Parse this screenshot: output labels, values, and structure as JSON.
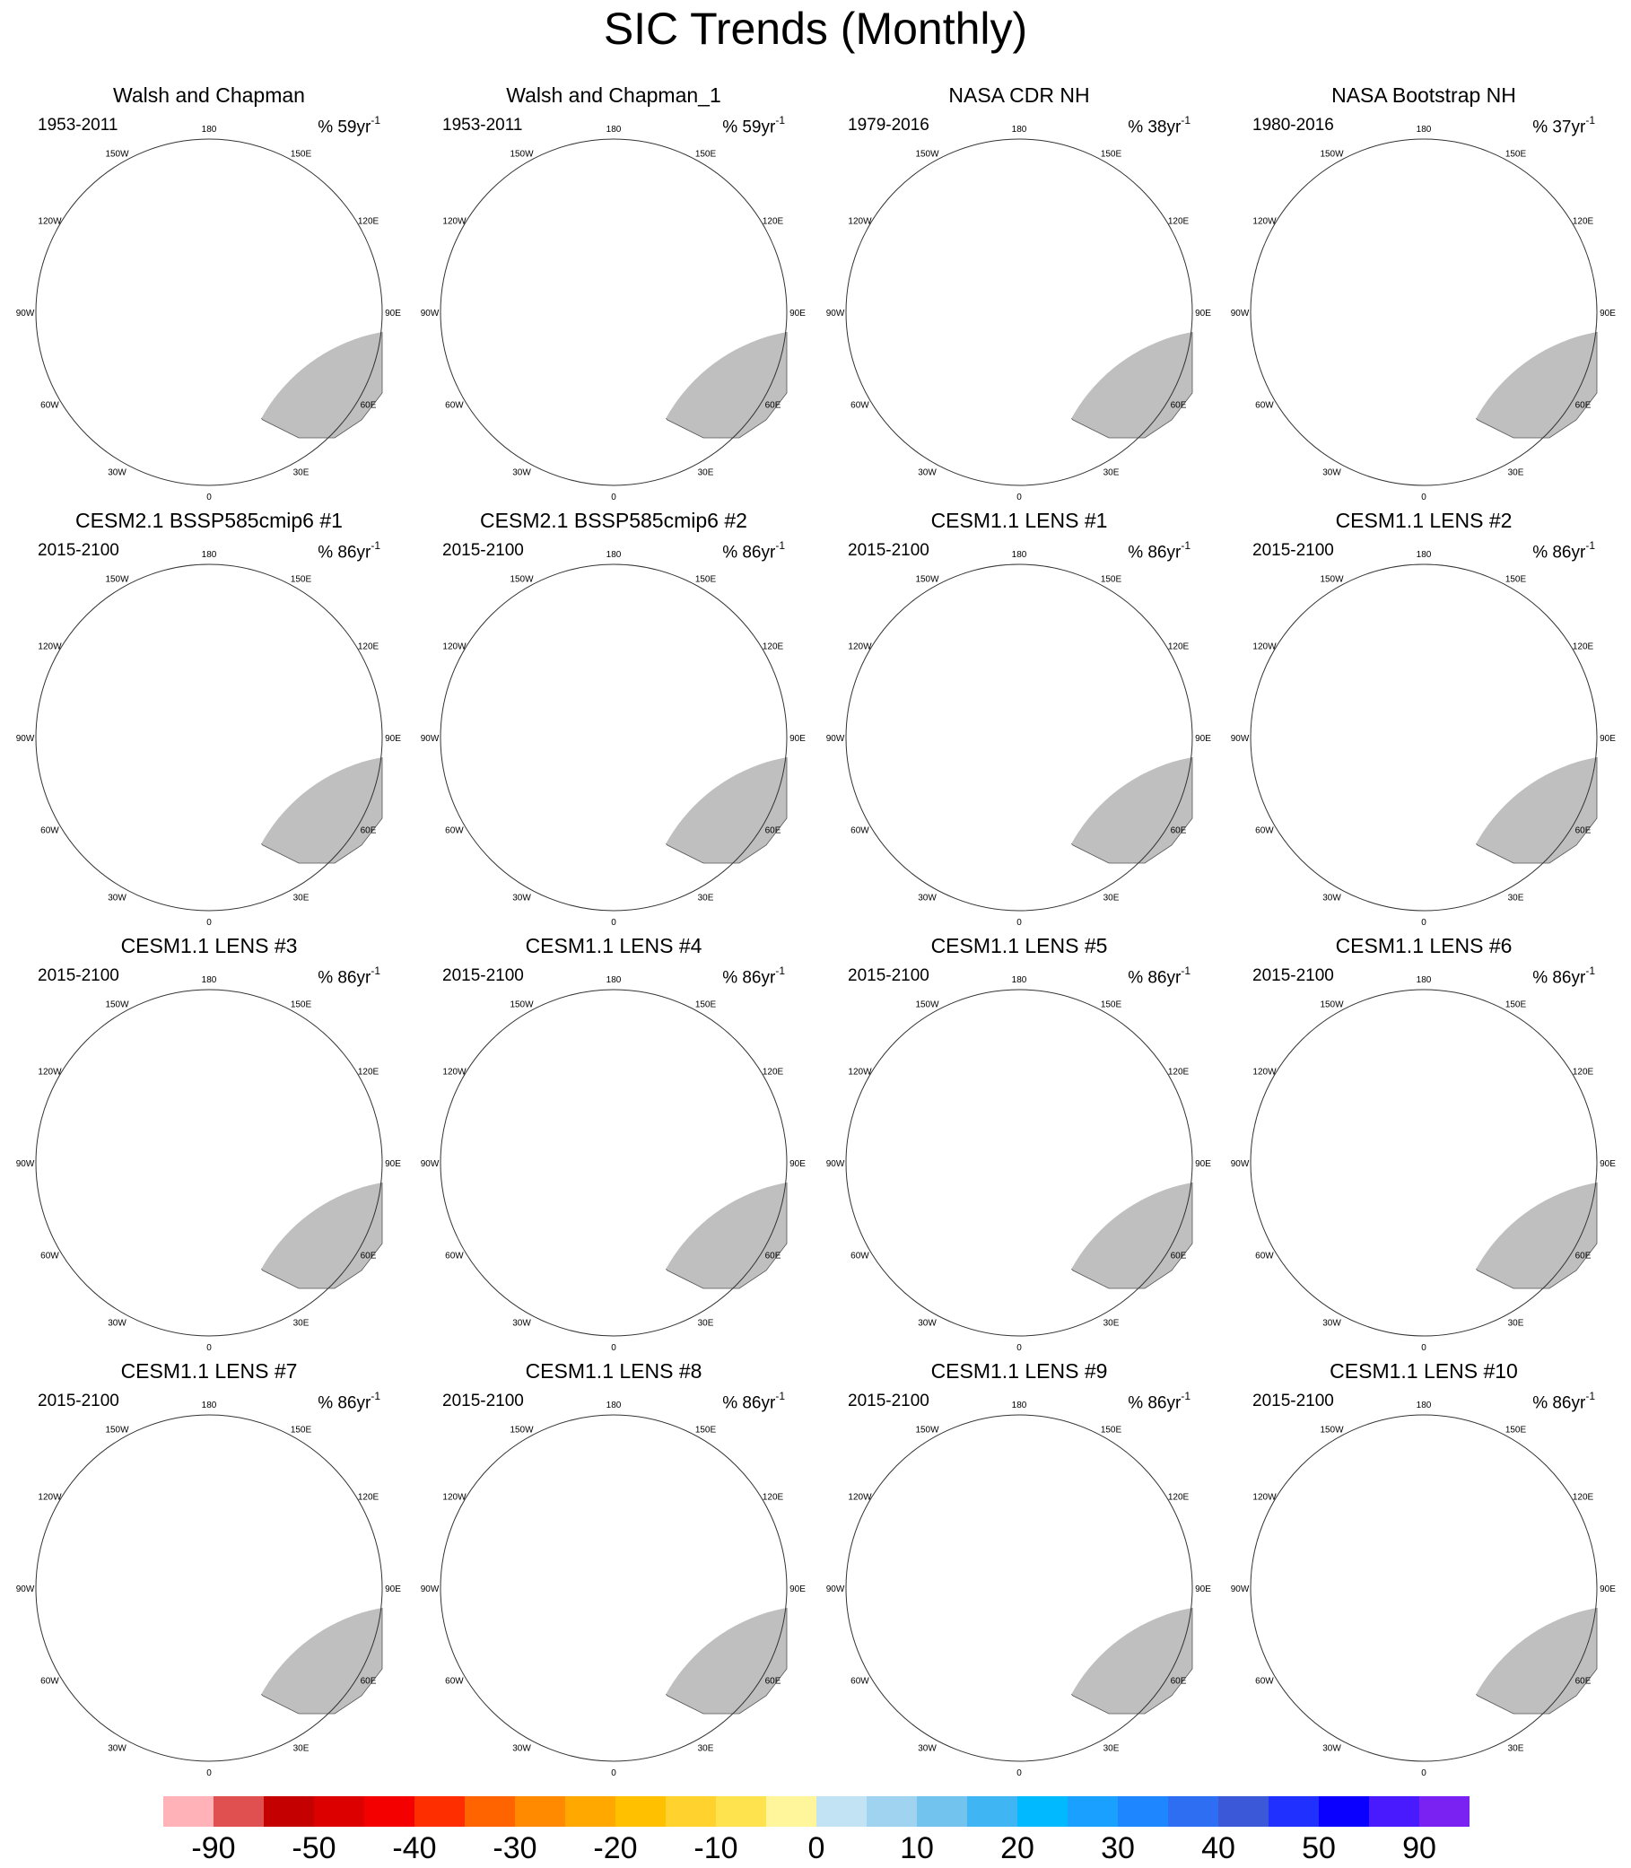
{
  "title": "SIC Trends (Monthly)",
  "colors": {
    "land": "#bfbfbf",
    "ocean": "#ffffff",
    "coast": "#555555",
    "neg_strong": "#c80000",
    "neg_medium": "#ff5a00",
    "neg_light": "#ffb400",
    "neg_faint": "#ffe166",
    "neg_palest": "#fff5a8",
    "pos_light": "#bfe3f5"
  },
  "lon_labels": {
    "top": "180",
    "upper_left": "150W",
    "upper_right": "150E",
    "mid_upper_left": "120W",
    "mid_upper_right": "120E",
    "left": "90W",
    "right": "90E",
    "mid_lower_left": "60W",
    "mid_lower_right": "60E",
    "lower_left": "30W",
    "lower_right": "30E",
    "bottom": "0"
  },
  "panels": [
    {
      "title": "Walsh and Chapman",
      "years": "1953-2011",
      "rate": "% 59yr",
      "rate_exp": "-1",
      "pattern": "obs_wc"
    },
    {
      "title": "Walsh and Chapman_1",
      "years": "1953-2011",
      "rate": "% 59yr",
      "rate_exp": "-1",
      "pattern": "obs_wc"
    },
    {
      "title": "NASA CDR NH",
      "years": "1979-2016",
      "rate": "% 38yr",
      "rate_exp": "-1",
      "pattern": "obs_sat"
    },
    {
      "title": "NASA Bootstrap NH",
      "years": "1980-2016",
      "rate": "% 37yr",
      "rate_exp": "-1",
      "pattern": "obs_sat"
    },
    {
      "title": "CESM2.1 BSSP585cmip6 #1",
      "years": "2015-2100",
      "rate": "% 86yr",
      "rate_exp": "-1",
      "pattern": "cesm2"
    },
    {
      "title": "CESM2.1 BSSP585cmip6 #2",
      "years": "2015-2100",
      "rate": "% 86yr",
      "rate_exp": "-1",
      "pattern": "cesm2"
    },
    {
      "title": "CESM1.1 LENS #1",
      "years": "2015-2100",
      "rate": "% 86yr",
      "rate_exp": "-1",
      "pattern": "lens"
    },
    {
      "title": "CESM1.1 LENS #2",
      "years": "2015-2100",
      "rate": "% 86yr",
      "rate_exp": "-1",
      "pattern": "lens"
    },
    {
      "title": "CESM1.1 LENS #3",
      "years": "2015-2100",
      "rate": "% 86yr",
      "rate_exp": "-1",
      "pattern": "lens"
    },
    {
      "title": "CESM1.1 LENS #4",
      "years": "2015-2100",
      "rate": "% 86yr",
      "rate_exp": "-1",
      "pattern": "lens"
    },
    {
      "title": "CESM1.1 LENS #5",
      "years": "2015-2100",
      "rate": "% 86yr",
      "rate_exp": "-1",
      "pattern": "lens"
    },
    {
      "title": "CESM1.1 LENS #6",
      "years": "2015-2100",
      "rate": "% 86yr",
      "rate_exp": "-1",
      "pattern": "lens"
    },
    {
      "title": "CESM1.1 LENS #7",
      "years": "2015-2100",
      "rate": "% 86yr",
      "rate_exp": "-1",
      "pattern": "lens"
    },
    {
      "title": "CESM1.1 LENS #8",
      "years": "2015-2100",
      "rate": "% 86yr",
      "rate_exp": "-1",
      "pattern": "lens"
    },
    {
      "title": "CESM1.1 LENS #9",
      "years": "2015-2100",
      "rate": "% 86yr",
      "rate_exp": "-1",
      "pattern": "lens"
    },
    {
      "title": "CESM1.1 LENS #10",
      "years": "2015-2100",
      "rate": "% 86yr",
      "rate_exp": "-1",
      "pattern": "lens"
    }
  ],
  "colorbar": {
    "colors": [
      "#ffb3b8",
      "#e05050",
      "#c40000",
      "#dc0000",
      "#f50000",
      "#ff2e00",
      "#ff6400",
      "#ff8a00",
      "#ffa800",
      "#ffc000",
      "#ffd22e",
      "#ffe34e",
      "#fff59a",
      "#c2e3f4",
      "#9fd3ef",
      "#72c3ee",
      "#3fb6f3",
      "#00b9ff",
      "#1aa0ff",
      "#1e86ff",
      "#2d6ef2",
      "#3a58d8",
      "#2030ff",
      "#0a00ff",
      "#4a1aff",
      "#7a22f2"
    ],
    "labels": [
      "-90",
      "-50",
      "-40",
      "-30",
      "-20",
      "-10",
      "0",
      "10",
      "20",
      "30",
      "40",
      "50",
      "90"
    ]
  }
}
